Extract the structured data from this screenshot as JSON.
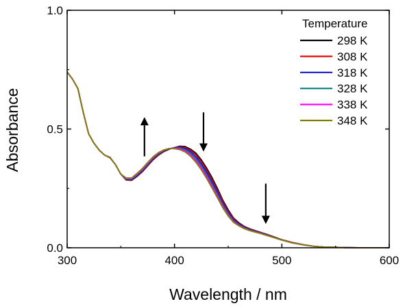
{
  "chart_data": {
    "type": "line",
    "xlabel": "Wavelength / nm",
    "ylabel": "Absorbance",
    "xlim": [
      300,
      600
    ],
    "ylim": [
      0.0,
      1.0
    ],
    "xticks": [
      300,
      400,
      500,
      600
    ],
    "yticks": [
      0.0,
      0.5,
      1.0
    ],
    "xtick_labels": [
      "300",
      "400",
      "500",
      "600"
    ],
    "ytick_labels": [
      "0.0",
      "0.5",
      "1.0"
    ],
    "grid": false,
    "legend": {
      "title": "Temperature",
      "position": "top-right"
    },
    "x": [
      300,
      305,
      310,
      315,
      320,
      325,
      330,
      335,
      340,
      345,
      350,
      355,
      360,
      365,
      370,
      375,
      380,
      385,
      390,
      395,
      400,
      405,
      410,
      415,
      420,
      425,
      430,
      435,
      440,
      445,
      450,
      455,
      460,
      465,
      470,
      475,
      480,
      485,
      490,
      500,
      510,
      520,
      530,
      540,
      550,
      560,
      580,
      600
    ],
    "series": [
      {
        "name": "298 K",
        "color": "#000000",
        "values": [
          0.74,
          0.71,
          0.67,
          0.57,
          0.48,
          0.44,
          0.41,
          0.39,
          0.38,
          0.35,
          0.31,
          0.285,
          0.284,
          0.3,
          0.32,
          0.345,
          0.37,
          0.39,
          0.405,
          0.415,
          0.422,
          0.428,
          0.426,
          0.415,
          0.398,
          0.37,
          0.335,
          0.295,
          0.25,
          0.2,
          0.16,
          0.125,
          0.105,
          0.09,
          0.08,
          0.072,
          0.065,
          0.058,
          0.05,
          0.034,
          0.022,
          0.013,
          0.006,
          0.003,
          0.002,
          0.001,
          0.0,
          0.0
        ]
      },
      {
        "name": "308 K",
        "color": "#e60000",
        "values": [
          0.74,
          0.71,
          0.67,
          0.57,
          0.48,
          0.44,
          0.41,
          0.39,
          0.38,
          0.35,
          0.31,
          0.286,
          0.286,
          0.302,
          0.322,
          0.347,
          0.372,
          0.392,
          0.407,
          0.416,
          0.422,
          0.426,
          0.422,
          0.41,
          0.391,
          0.362,
          0.326,
          0.286,
          0.242,
          0.193,
          0.154,
          0.121,
          0.102,
          0.088,
          0.078,
          0.07,
          0.064,
          0.057,
          0.049,
          0.034,
          0.022,
          0.013,
          0.006,
          0.003,
          0.002,
          0.001,
          0.0,
          0.0
        ]
      },
      {
        "name": "318 K",
        "color": "#1a1acc",
        "values": [
          0.74,
          0.71,
          0.67,
          0.57,
          0.48,
          0.44,
          0.41,
          0.39,
          0.379,
          0.35,
          0.31,
          0.288,
          0.288,
          0.304,
          0.325,
          0.35,
          0.375,
          0.395,
          0.409,
          0.417,
          0.421,
          0.423,
          0.418,
          0.404,
          0.383,
          0.353,
          0.317,
          0.277,
          0.234,
          0.186,
          0.148,
          0.117,
          0.099,
          0.086,
          0.076,
          0.069,
          0.063,
          0.056,
          0.048,
          0.033,
          0.021,
          0.012,
          0.006,
          0.003,
          0.002,
          0.001,
          0.0,
          0.0
        ]
      },
      {
        "name": "328 K",
        "color": "#008080",
        "values": [
          0.74,
          0.71,
          0.67,
          0.57,
          0.48,
          0.44,
          0.41,
          0.39,
          0.379,
          0.35,
          0.31,
          0.29,
          0.29,
          0.307,
          0.328,
          0.353,
          0.378,
          0.397,
          0.41,
          0.418,
          0.42,
          0.42,
          0.413,
          0.398,
          0.375,
          0.345,
          0.308,
          0.268,
          0.226,
          0.18,
          0.143,
          0.113,
          0.096,
          0.084,
          0.075,
          0.068,
          0.062,
          0.055,
          0.047,
          0.033,
          0.021,
          0.012,
          0.006,
          0.003,
          0.002,
          0.001,
          0.0,
          0.0
        ]
      },
      {
        "name": "338 K",
        "color": "#ff00ff",
        "values": [
          0.74,
          0.71,
          0.67,
          0.57,
          0.48,
          0.44,
          0.41,
          0.39,
          0.378,
          0.35,
          0.31,
          0.292,
          0.292,
          0.31,
          0.331,
          0.356,
          0.38,
          0.399,
          0.411,
          0.418,
          0.419,
          0.417,
          0.408,
          0.392,
          0.367,
          0.337,
          0.3,
          0.26,
          0.218,
          0.174,
          0.138,
          0.11,
          0.094,
          0.082,
          0.073,
          0.067,
          0.061,
          0.054,
          0.047,
          0.032,
          0.021,
          0.012,
          0.006,
          0.003,
          0.002,
          0.001,
          0.0,
          0.0
        ]
      },
      {
        "name": "348 K",
        "color": "#808000",
        "values": [
          0.74,
          0.71,
          0.67,
          0.57,
          0.48,
          0.44,
          0.41,
          0.39,
          0.378,
          0.35,
          0.31,
          0.294,
          0.294,
          0.313,
          0.334,
          0.359,
          0.383,
          0.401,
          0.412,
          0.418,
          0.417,
          0.413,
          0.403,
          0.385,
          0.359,
          0.328,
          0.291,
          0.251,
          0.21,
          0.168,
          0.133,
          0.107,
          0.092,
          0.08,
          0.072,
          0.066,
          0.06,
          0.053,
          0.046,
          0.032,
          0.02,
          0.012,
          0.006,
          0.003,
          0.002,
          0.001,
          0.0,
          0.0
        ]
      }
    ],
    "annotations": [
      {
        "type": "arrow",
        "direction": "up",
        "x": 372,
        "y_from": 0.385,
        "y_to": 0.55
      },
      {
        "type": "arrow",
        "direction": "down",
        "x": 427,
        "y_from": 0.57,
        "y_to": 0.405
      },
      {
        "type": "arrow",
        "direction": "down",
        "x": 485,
        "y_from": 0.27,
        "y_to": 0.1
      }
    ]
  }
}
